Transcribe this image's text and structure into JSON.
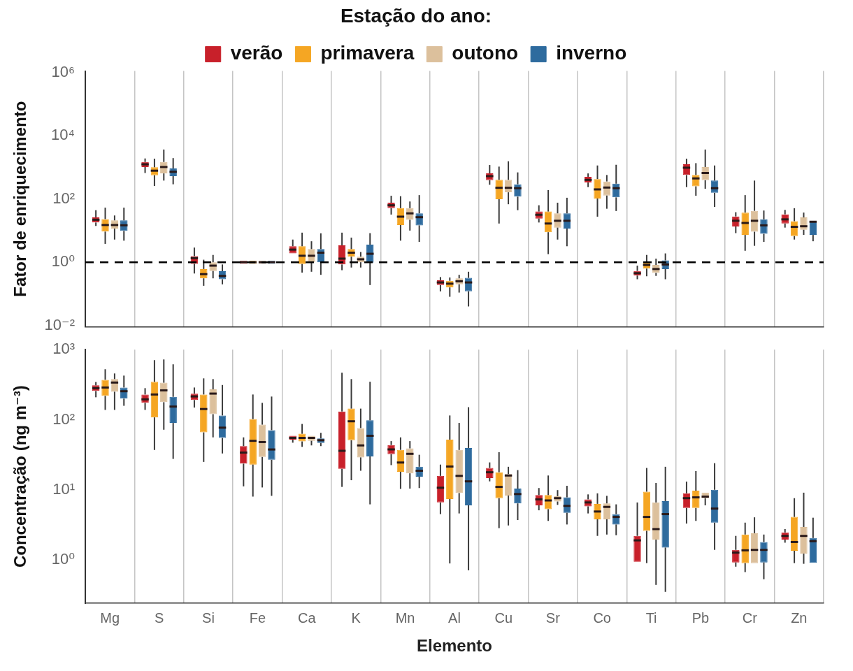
{
  "chart_data": [
    {
      "type": "box",
      "ylabel": "Fator de enriquecimento",
      "legend_title": "Estação do ano:",
      "legend": "top",
      "log": "y",
      "grid": "x",
      "tick_labels": "y",
      "ylim": [
        0.009,
        1100000
      ],
      "yticks": [
        {
          "value": 0.01,
          "label": "10⁻²"
        },
        {
          "value": 1,
          "label": "10⁰"
        },
        {
          "value": 100,
          "label": "10²"
        },
        {
          "value": 10000,
          "label": "10⁴"
        },
        {
          "value": 1000000,
          "label": "10⁶"
        }
      ],
      "ref_lines": [
        {
          "axis": "y",
          "value": 1,
          "line_style": "dashed",
          "color": "#000000"
        }
      ],
      "categories": [
        null,
        null,
        null,
        null,
        null,
        null,
        null,
        null,
        null,
        null,
        null,
        null,
        null,
        null,
        null
      ],
      "series": [
        {
          "name": "verão",
          "color": "#c8202a",
          "boxes": [
            {
              "low": 14,
              "q1": 18,
              "median": 22,
              "q3": 26,
              "high": 44
            },
            {
              "low": 660,
              "q1": 1020,
              "median": 1240,
              "q3": 1470,
              "high": 1900
            },
            {
              "low": 0.44,
              "q1": 0.89,
              "median": 1.35,
              "q3": 1.56,
              "high": 2.9
            },
            {
              "low": 0.9,
              "q1": 0.9,
              "median": 1,
              "q3": 1.1,
              "high": 1.1
            },
            {
              "low": 1.8,
              "q1": 1.9,
              "median": 2.5,
              "q3": 3.2,
              "high": 5.2
            },
            {
              "low": 0.56,
              "q1": 0.85,
              "median": 1.3,
              "q3": 3.4,
              "high": 8.6
            },
            {
              "low": 32,
              "q1": 51,
              "median": 63,
              "q3": 76,
              "high": 126
            },
            {
              "low": 0.12,
              "q1": 0.19,
              "median": 0.23,
              "q3": 0.27,
              "high": 0.34
            },
            {
              "low": 280,
              "q1": 390,
              "median": 525,
              "q3": 640,
              "high": 1180
            },
            {
              "low": 18,
              "q1": 24,
              "median": 31.6,
              "q3": 40,
              "high": 63
            },
            {
              "low": 236,
              "q1": 330,
              "median": 400,
              "q3": 500,
              "high": 640
            },
            {
              "low": 0.29,
              "q1": 0.38,
              "median": 0.45,
              "q3": 0.53,
              "high": 0.78
            },
            {
              "low": 236,
              "q1": 570,
              "median": 970,
              "q3": 1240,
              "high": 1870
            },
            {
              "low": 8.3,
              "q1": 13.5,
              "median": 20.4,
              "q3": 28,
              "high": 38
            },
            {
              "low": 12.4,
              "q1": 16.7,
              "median": 22.6,
              "q3": 32.6,
              "high": 45
            }
          ]
        },
        {
          "name": "primavera",
          "color": "#f5a623",
          "boxes": [
            {
              "low": 3.8,
              "q1": 9.3,
              "median": 15,
              "q3": 23,
              "high": 53
            },
            {
              "low": 257,
              "q1": 560,
              "median": 780,
              "q3": 1000,
              "high": 1870
            },
            {
              "low": 0.18,
              "q1": 0.31,
              "median": 0.42,
              "q3": 0.61,
              "high": 1.2
            },
            {
              "low": 0.9,
              "q1": 0.9,
              "median": 1,
              "q3": 1.1,
              "high": 1.1
            },
            {
              "low": 0.47,
              "q1": 0.88,
              "median": 1.6,
              "q3": 3.2,
              "high": 8.6
            },
            {
              "low": 0.68,
              "q1": 1.5,
              "median": 2,
              "q3": 2.6,
              "high": 6
            },
            {
              "low": 4.8,
              "q1": 15,
              "median": 27.5,
              "q3": 51,
              "high": 122
            },
            {
              "low": 0.081,
              "q1": 0.16,
              "median": 0.21,
              "q3": 0.26,
              "high": 0.33
            },
            {
              "low": 16.7,
              "q1": 98,
              "median": 225,
              "q3": 400,
              "high": 1050
            },
            {
              "low": 1.8,
              "q1": 8.9,
              "median": 16.7,
              "q3": 40,
              "high": 190
            },
            {
              "low": 27.5,
              "q1": 103,
              "median": 200,
              "q3": 425,
              "high": 1140
            },
            {
              "low": 0.36,
              "q1": 0.63,
              "median": 0.82,
              "q3": 1,
              "high": 1.7
            },
            {
              "low": 126,
              "q1": 250,
              "median": 445,
              "q3": 570,
              "high": 1350
            },
            {
              "low": 2.3,
              "q1": 7.3,
              "median": 17.4,
              "q3": 37,
              "high": 132
            },
            {
              "low": 5.2,
              "q1": 6.7,
              "median": 13.1,
              "q3": 19.7,
              "high": 51
            }
          ]
        },
        {
          "name": "outono",
          "color": "#dcc09c",
          "boxes": [
            {
              "low": 5.2,
              "q1": 11.6,
              "median": 15,
              "q3": 21,
              "high": 30
            },
            {
              "low": 380,
              "q1": 640,
              "median": 1020,
              "q3": 1470,
              "high": 3640
            },
            {
              "low": 0.31,
              "q1": 0.53,
              "median": 0.78,
              "q3": 1,
              "high": 1.7
            },
            {
              "low": 0.9,
              "q1": 0.9,
              "median": 1,
              "q3": 1.1,
              "high": 1.1
            },
            {
              "low": 0.5,
              "q1": 1,
              "median": 1.6,
              "q3": 2.6,
              "high": 4.6
            },
            {
              "low": 0.68,
              "q1": 1,
              "median": 1.24,
              "q3": 1.5,
              "high": 2.1
            },
            {
              "low": 10,
              "q1": 22,
              "median": 35,
              "q3": 51,
              "high": 83
            },
            {
              "low": 0.11,
              "q1": 0.2,
              "median": 0.25,
              "q3": 0.31,
              "high": 0.4
            },
            {
              "low": 68,
              "q1": 162,
              "median": 225,
              "q3": 400,
              "high": 1550
            },
            {
              "low": 5.2,
              "q1": 12.4,
              "median": 20.4,
              "q3": 35,
              "high": 76
            },
            {
              "low": 49,
              "q1": 128,
              "median": 229,
              "q3": 356,
              "high": 570
            },
            {
              "low": 0.37,
              "q1": 0.46,
              "median": 0.61,
              "q3": 0.82,
              "high": 1.3
            },
            {
              "low": 209,
              "q1": 390,
              "median": 660,
              "q3": 1020,
              "high": 3640
            },
            {
              "low": 3.3,
              "q1": 9.2,
              "median": 20.4,
              "q3": 42,
              "high": 380
            },
            {
              "low": 7.3,
              "q1": 10.6,
              "median": 13.7,
              "q3": 26,
              "high": 37
            }
          ]
        },
        {
          "name": "inverno",
          "color": "#2e6b9e",
          "boxes": [
            {
              "low": 4.8,
              "q1": 9.8,
              "median": 14.7,
              "q3": 21,
              "high": 53
            },
            {
              "low": 290,
              "q1": 525,
              "median": 720,
              "q3": 920,
              "high": 1950
            },
            {
              "low": 0.2,
              "q1": 0.29,
              "median": 0.37,
              "q3": 0.52,
              "high": 0.85
            },
            {
              "low": 0.9,
              "q1": 0.9,
              "median": 1,
              "q3": 1.1,
              "high": 1.1
            },
            {
              "low": 0.4,
              "q1": 1,
              "median": 2,
              "q3": 2.6,
              "high": 8.2
            },
            {
              "low": 0.19,
              "q1": 0.97,
              "median": 1.85,
              "q3": 3.6,
              "high": 8.3
            },
            {
              "low": 4.4,
              "q1": 14.6,
              "median": 26.5,
              "q3": 35,
              "high": 132
            },
            {
              "low": 0.04,
              "q1": 0.12,
              "median": 0.23,
              "q3": 0.32,
              "high": 0.5
            },
            {
              "low": 44,
              "q1": 118,
              "median": 218,
              "q3": 290,
              "high": 690
            },
            {
              "low": 3.2,
              "q1": 11.6,
              "median": 20.4,
              "q3": 35,
              "high": 109
            },
            {
              "low": 41.6,
              "q1": 112,
              "median": 218,
              "q3": 303,
              "high": 1200
            },
            {
              "low": 0.29,
              "q1": 0.61,
              "median": 0.85,
              "q3": 1.14,
              "high": 1.9
            },
            {
              "low": 56,
              "q1": 156,
              "median": 218,
              "q3": 380,
              "high": 1140
            },
            {
              "low": 4.4,
              "q1": 7.9,
              "median": 14.6,
              "q3": 22.6,
              "high": 43
            },
            {
              "low": 4.6,
              "q1": 7.3,
              "median": 19,
              "q3": 19.7,
              "high": 20
            }
          ]
        }
      ]
    },
    {
      "type": "box",
      "ylabel": "Concentração (ng m⁻³)",
      "xlabel": "Elemento",
      "log": "y",
      "grid": "x",
      "ylim": [
        0.24,
        1000
      ],
      "yticks": [
        {
          "value": 1,
          "label": "10⁰"
        },
        {
          "value": 10,
          "label": "10¹"
        },
        {
          "value": 100,
          "label": "10²"
        },
        {
          "value": 1000,
          "label": "10³"
        }
      ],
      "categories": [
        "Mg",
        "S",
        "Si",
        "Fe",
        "Ca",
        "K",
        "Mn",
        "Al",
        "Cu",
        "Sr",
        "Co",
        "Ti",
        "Pb",
        "Cr",
        "Zn"
      ],
      "series": [
        {
          "color": "#c8202a",
          "boxes": [
            {
              "low": 209,
              "q1": 257,
              "median": 282,
              "q3": 309,
              "high": 345
            },
            {
              "low": 138,
              "q1": 174,
              "median": 195,
              "q3": 229,
              "high": 282
            },
            {
              "low": 149,
              "q1": 191,
              "median": 215,
              "q3": 235,
              "high": 288
            },
            {
              "low": 11.2,
              "q1": 23.6,
              "median": 34,
              "q3": 42,
              "high": 56
            },
            {
              "low": 47,
              "q1": 52,
              "median": 55,
              "q3": 59,
              "high": 60
            },
            {
              "low": 11,
              "q1": 19.9,
              "median": 36,
              "q3": 131,
              "high": 468
            },
            {
              "low": 22.5,
              "q1": 32.2,
              "median": 37.7,
              "q3": 43.5,
              "high": 49.5
            },
            {
              "low": 4.5,
              "q1": 6.6,
              "median": 10.7,
              "q3": 15.8,
              "high": 22.9
            },
            {
              "low": 13.2,
              "q1": 14.7,
              "median": 17.8,
              "q3": 20.5,
              "high": 24.6
            },
            {
              "low": 5.1,
              "q1": 6,
              "median": 7.3,
              "q3": 8.4,
              "high": 10.6
            },
            {
              "low": 4.6,
              "q1": 5.8,
              "median": 6.6,
              "q3": 7.3,
              "high": 8.6
            },
            {
              "low": 0.93,
              "q1": 0.94,
              "median": 1.9,
              "q3": 2.2,
              "high": 6.6
            },
            {
              "low": 3.3,
              "q1": 5.5,
              "median": 7.6,
              "q3": 8.9,
              "high": 13.1
            },
            {
              "low": 0.8,
              "q1": 0.92,
              "median": 1.27,
              "q3": 1.39,
              "high": 2.2
            },
            {
              "low": 1.76,
              "q1": 1.95,
              "median": 2.2,
              "q3": 2.46,
              "high": 2.75
            }
          ]
        },
        {
          "color": "#f5a623",
          "boxes": [
            {
              "low": 138,
              "q1": 219,
              "median": 288,
              "q3": 371,
              "high": 525
            },
            {
              "low": 37,
              "q1": 108,
              "median": 229,
              "q3": 347,
              "high": 708
            },
            {
              "low": 25,
              "q1": 66,
              "median": 142,
              "q3": 229,
              "high": 389
            },
            {
              "low": 8,
              "q1": 22.9,
              "median": 50,
              "q3": 102,
              "high": 229
            },
            {
              "low": 41,
              "q1": 49,
              "median": 55,
              "q3": 63,
              "high": 87
            },
            {
              "low": 13.7,
              "q1": 51,
              "median": 95,
              "q3": 144,
              "high": 380
            },
            {
              "low": 10.3,
              "q1": 18.1,
              "median": 24.5,
              "q3": 37.1,
              "high": 56
            },
            {
              "low": 0.89,
              "q1": 7.4,
              "median": 21.5,
              "q3": 52,
              "high": 115
            },
            {
              "low": 2.84,
              "q1": 7.6,
              "median": 11,
              "q3": 17.8,
              "high": 34.4
            },
            {
              "low": 3.6,
              "q1": 5.3,
              "median": 7.05,
              "q3": 8.4,
              "high": 16
            },
            {
              "low": 2.2,
              "q1": 3.8,
              "median": 4.9,
              "q3": 6.3,
              "high": 8.9
            },
            {
              "low": 0.9,
              "q1": 2.6,
              "median": 4.1,
              "q3": 9.4,
              "high": 20.5
            },
            {
              "low": 3.6,
              "q1": 5.5,
              "median": 7.8,
              "q3": 9.7,
              "high": 18.5
            },
            {
              "low": 0.67,
              "q1": 0.9,
              "median": 1.37,
              "q3": 2.3,
              "high": 3.4
            },
            {
              "low": 0.9,
              "q1": 1.35,
              "median": 1.8,
              "q3": 4.1,
              "high": 7.6
            }
          ]
        },
        {
          "color": "#dcc09c",
          "boxes": [
            {
              "low": 138,
              "q1": 251,
              "median": 339,
              "q3": 380,
              "high": 457
            },
            {
              "low": 72,
              "q1": 178,
              "median": 262,
              "q3": 337,
              "high": 724
            },
            {
              "low": 56,
              "q1": 120,
              "median": 236,
              "q3": 271,
              "high": 380
            },
            {
              "low": 10.8,
              "q1": 29.4,
              "median": 48,
              "q3": 85,
              "high": 174
            },
            {
              "low": 43,
              "q1": 50,
              "median": 55,
              "q3": 59,
              "high": 61
            },
            {
              "low": 18.7,
              "q1": 29,
              "median": 43,
              "q3": 76,
              "high": 144
            },
            {
              "low": 10.4,
              "q1": 17.2,
              "median": 32.6,
              "q3": 39,
              "high": 49.5
            },
            {
              "low": 4.6,
              "q1": 9,
              "median": 15.8,
              "q3": 37,
              "high": 90
            },
            {
              "low": 3.1,
              "q1": 8.3,
              "median": 16,
              "q3": 16.8,
              "high": 21.3
            },
            {
              "low": 6.1,
              "q1": 6.8,
              "median": 7.6,
              "q3": 8.1,
              "high": 9.9
            },
            {
              "low": 2.3,
              "q1": 3.8,
              "median": 5.7,
              "q3": 6.4,
              "high": 8.2
            },
            {
              "low": 0.44,
              "q1": 1.95,
              "median": 2.75,
              "q3": 6.6,
              "high": 12.5
            },
            {
              "low": 6,
              "q1": 7.6,
              "median": 8,
              "q3": 9.1,
              "high": 9.1
            },
            {
              "low": 0.88,
              "q1": 0.9,
              "median": 1.39,
              "q3": 2.4,
              "high": 4.05
            },
            {
              "low": 0.88,
              "q1": 1.23,
              "median": 2.2,
              "q3": 2.95,
              "high": 9.1
            }
          ]
        },
        {
          "color": "#2e6b9e",
          "boxes": [
            {
              "low": 158,
              "q1": 200,
              "median": 255,
              "q3": 288,
              "high": 426
            },
            {
              "low": 27.6,
              "q1": 90,
              "median": 154,
              "q3": 212,
              "high": 617
            },
            {
              "low": 33,
              "q1": 55,
              "median": 77,
              "q3": 115,
              "high": 313
            },
            {
              "low": 8.2,
              "q1": 26.8,
              "median": 37.6,
              "q3": 71,
              "high": 214
            },
            {
              "low": 42,
              "q1": 46.6,
              "median": 51,
              "q3": 54,
              "high": 65
            },
            {
              "low": 6.2,
              "q1": 30,
              "median": 59,
              "q3": 98,
              "high": 348
            },
            {
              "low": 10.6,
              "q1": 15.4,
              "median": 18.7,
              "q3": 21.3,
              "high": 31.6
            },
            {
              "low": 0.71,
              "q1": 6,
              "median": 13.2,
              "q3": 39.5,
              "high": 151
            },
            {
              "low": 3.7,
              "q1": 6.4,
              "median": 8.7,
              "q3": 10.4,
              "high": 19.1
            },
            {
              "low": 3.2,
              "q1": 4.7,
              "median": 5.9,
              "q3": 7.8,
              "high": 11.4
            },
            {
              "low": 2.25,
              "q1": 3.2,
              "median": 4.1,
              "q3": 4.5,
              "high": 6.2
            },
            {
              "low": 0.35,
              "q1": 1.5,
              "median": 4.5,
              "q3": 6.9,
              "high": 21.3
            },
            {
              "low": 1.39,
              "q1": 3.4,
              "median": 5.4,
              "q3": 10,
              "high": 24
            },
            {
              "low": 0.53,
              "q1": 0.92,
              "median": 1.39,
              "q3": 1.8,
              "high": 2.3
            },
            {
              "low": 0.88,
              "q1": 0.91,
              "median": 1.85,
              "q3": 2.05,
              "high": 4
            }
          ]
        }
      ]
    }
  ]
}
